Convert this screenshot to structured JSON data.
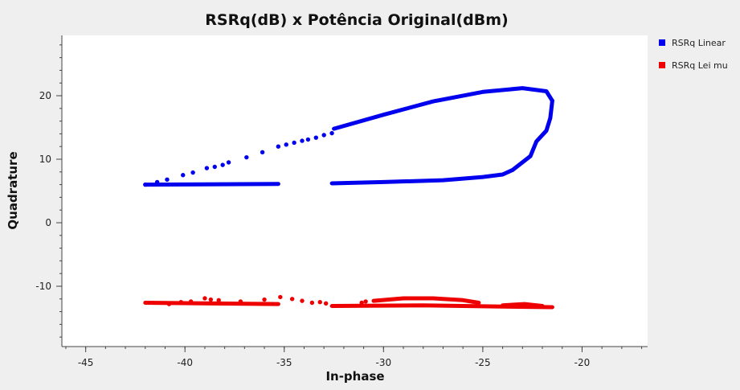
{
  "chart_data": {
    "type": "scatter",
    "title": "RSRq(dB) x Potência Original(dBm)",
    "xlabel": "In-phase",
    "ylabel": "Quadrature",
    "xlim": [
      -46.2,
      -16.7
    ],
    "ylim": [
      -19.5,
      29.5
    ],
    "xticks": [
      "-45",
      "-40",
      "-35",
      "-30",
      "-25",
      "-20"
    ],
    "xtick_values": [
      -45,
      -40,
      -35,
      -30,
      -25,
      -20
    ],
    "yticks": [
      "20",
      "10",
      "0",
      "-10"
    ],
    "ytick_values": [
      20,
      10,
      0,
      -10
    ],
    "grid": false,
    "legend_position": "top-right",
    "series": [
      {
        "name": "RSRq Linear",
        "color": "#0000ee",
        "segments": [
          {
            "x": [
              -42,
              -35.3
            ],
            "y": [
              6.0,
              6.1
            ]
          },
          {
            "x": [
              -32.6,
              -30,
              -27,
              -25,
              -24,
              -23.5
            ],
            "y": [
              6.2,
              6.4,
              6.7,
              7.2,
              7.6,
              8.3
            ]
          },
          {
            "x": [
              -23.5,
              -22.6,
              -22.3,
              -21.8,
              -21.6,
              -21.5
            ],
            "y": [
              8.3,
              10.5,
              12.8,
              14.5,
              16.5,
              19.2
            ]
          },
          {
            "x": [
              -21.5,
              -21.8,
              -23,
              -25,
              -27.5,
              -30,
              -32.5
            ],
            "y": [
              19.2,
              20.7,
              21.2,
              20.6,
              19.1,
              17.0,
              14.8
            ]
          }
        ],
        "sparse_points": [
          {
            "x": -42.0,
            "y": 6.0
          },
          {
            "x": -41.4,
            "y": 6.4
          },
          {
            "x": -40.9,
            "y": 6.8
          },
          {
            "x": -40.1,
            "y": 7.5
          },
          {
            "x": -39.6,
            "y": 7.9
          },
          {
            "x": -38.9,
            "y": 8.6
          },
          {
            "x": -38.5,
            "y": 8.8
          },
          {
            "x": -38.1,
            "y": 9.1
          },
          {
            "x": -37.8,
            "y": 9.5
          },
          {
            "x": -36.9,
            "y": 10.3
          },
          {
            "x": -36.1,
            "y": 11.1
          },
          {
            "x": -35.3,
            "y": 12.0
          },
          {
            "x": -34.9,
            "y": 12.3
          },
          {
            "x": -34.5,
            "y": 12.6
          },
          {
            "x": -34.1,
            "y": 12.9
          },
          {
            "x": -33.8,
            "y": 13.1
          },
          {
            "x": -33.4,
            "y": 13.4
          },
          {
            "x": -33.0,
            "y": 13.8
          },
          {
            "x": -32.6,
            "y": 14.1
          }
        ]
      },
      {
        "name": "RSRq Lei mu",
        "color": "#ee0000",
        "segments": [
          {
            "x": [
              -42,
              -35.3
            ],
            "y": [
              -12.6,
              -12.8
            ]
          },
          {
            "x": [
              -32.6,
              -28,
              -24,
              -21.5
            ],
            "y": [
              -13.1,
              -13.0,
              -13.2,
              -13.3
            ]
          },
          {
            "x": [
              -30.5,
              -29,
              -27.5,
              -26,
              -25.2
            ],
            "y": [
              -12.3,
              -11.9,
              -11.9,
              -12.2,
              -12.6
            ]
          },
          {
            "x": [
              -24,
              -22.9,
              -22
            ],
            "y": [
              -13.0,
              -12.8,
              -13.1
            ]
          }
        ],
        "sparse_points": [
          {
            "x": -40.8,
            "y": -12.8
          },
          {
            "x": -40.2,
            "y": -12.5
          },
          {
            "x": -39.7,
            "y": -12.4
          },
          {
            "x": -39.0,
            "y": -11.9
          },
          {
            "x": -38.7,
            "y": -12.1
          },
          {
            "x": -38.3,
            "y": -12.2
          },
          {
            "x": -37.2,
            "y": -12.4
          },
          {
            "x": -36.0,
            "y": -12.1
          },
          {
            "x": -35.2,
            "y": -11.7
          },
          {
            "x": -34.6,
            "y": -12.0
          },
          {
            "x": -34.1,
            "y": -12.3
          },
          {
            "x": -33.6,
            "y": -12.6
          },
          {
            "x": -33.2,
            "y": -12.5
          },
          {
            "x": -32.9,
            "y": -12.7
          },
          {
            "x": -31.1,
            "y": -12.6
          },
          {
            "x": -30.9,
            "y": -12.4
          }
        ]
      }
    ]
  }
}
